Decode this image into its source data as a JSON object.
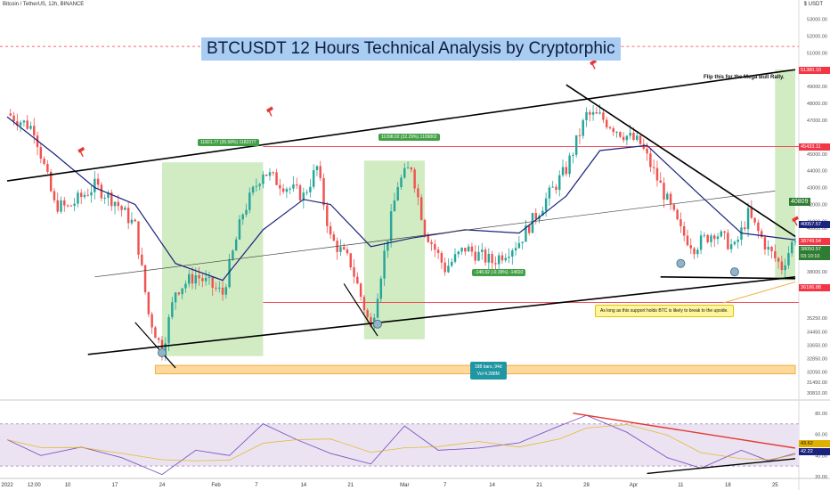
{
  "header": {
    "symbol_info": "Bitcoin / TetherUS, 12h, BINANCE",
    "unit": "$ USDT",
    "title": "BTCUSDT 12 Hours Technical Analysis by Cryptorphic"
  },
  "annotations": {
    "flip_note": "Flip this for the Mega Bull Rally.",
    "support_note": "As long as this support holds BTC is likely to break to the upside.",
    "range1": "11821.77 (35.58%) 1182377",
    "range2": "11098.02 (32.29%) 1109802",
    "range3": "-146.92 (-0.39%) -14692",
    "bars_info_line1": "188 bars, 94d",
    "bars_info_line2": "Vol 4.288M"
  },
  "price_axis": {
    "ticks": [
      "53000.00",
      "52000.00",
      "51000.00",
      "49000.00",
      "48000.00",
      "47000.00",
      "45000.00",
      "44000.00",
      "43000.00",
      "42000.00",
      "41000.00",
      "40600.00",
      "39400.00",
      "38000.00",
      "37000.00",
      "35250.00",
      "34450.00",
      "33650.00",
      "32850.00",
      "32050.00",
      "31450.00",
      "30810.00"
    ],
    "labels": [
      {
        "text": "51380.10",
        "color": "#f23645"
      },
      {
        "text": "45433.11",
        "color": "#f23645"
      },
      {
        "text": "40809",
        "color": "#2e7d32"
      },
      {
        "text": "40057.57",
        "color": "#1a237e"
      },
      {
        "text": "38749.54",
        "color": "#f23645"
      },
      {
        "text": "38050.57",
        "color": "#2e7d32"
      },
      {
        "text": "03:10:10",
        "color": "#2e7d32"
      },
      {
        "text": "36186.88",
        "color": "#f23645"
      }
    ]
  },
  "rsi_axis": {
    "ticks": [
      "80.00",
      "60.00",
      "40.00",
      "20.00"
    ],
    "labels": [
      {
        "text": "43.62",
        "color": "#e0b000"
      },
      {
        "text": "42.22",
        "color": "#1a237e"
      }
    ]
  },
  "time_axis": [
    "2022",
    "12:00",
    "10",
    "17",
    "24",
    "Feb",
    "7",
    "14",
    "21",
    "Mar",
    "7",
    "14",
    "21",
    "28",
    "Apr",
    "11",
    "18",
    "25"
  ],
  "colors": {
    "up": "#26a69a",
    "down": "#ef5350",
    "ma": "#1a237e",
    "box_green": "#c9e7b8",
    "rsi": "#7e57c2",
    "rsi_signal": "#e0b000"
  },
  "chart_data": {
    "type": "candlestick",
    "timeframe": "12h",
    "x_range": [
      "2022-01-01",
      "2022-04-28"
    ],
    "ylim": [
      30500,
      53500
    ],
    "close_path": [
      {
        "date": "2022-01-01",
        "close": 47400
      },
      {
        "date": "2022-01-05",
        "close": 46500
      },
      {
        "date": "2022-01-08",
        "close": 42000
      },
      {
        "date": "2022-01-10",
        "close": 41800
      },
      {
        "date": "2022-01-14",
        "close": 43100
      },
      {
        "date": "2022-01-17",
        "close": 42200
      },
      {
        "date": "2022-01-20",
        "close": 40700
      },
      {
        "date": "2022-01-22",
        "close": 35500
      },
      {
        "date": "2022-01-24",
        "close": 33300
      },
      {
        "date": "2022-01-26",
        "close": 36900
      },
      {
        "date": "2022-01-29",
        "close": 37800
      },
      {
        "date": "2022-02-02",
        "close": 36700
      },
      {
        "date": "2022-02-05",
        "close": 41500
      },
      {
        "date": "2022-02-08",
        "close": 44000
      },
      {
        "date": "2022-02-10",
        "close": 43400
      },
      {
        "date": "2022-02-14",
        "close": 42500
      },
      {
        "date": "2022-02-16",
        "close": 44200
      },
      {
        "date": "2022-02-18",
        "close": 40000
      },
      {
        "date": "2022-02-21",
        "close": 38500
      },
      {
        "date": "2022-02-24",
        "close": 34600
      },
      {
        "date": "2022-02-26",
        "close": 39100
      },
      {
        "date": "2022-02-28",
        "close": 43200
      },
      {
        "date": "2022-03-02",
        "close": 44300
      },
      {
        "date": "2022-03-04",
        "close": 40500
      },
      {
        "date": "2022-03-07",
        "close": 38200
      },
      {
        "date": "2022-03-10",
        "close": 39400
      },
      {
        "date": "2022-03-14",
        "close": 38600
      },
      {
        "date": "2022-03-18",
        "close": 39800
      },
      {
        "date": "2022-03-22",
        "close": 42300
      },
      {
        "date": "2022-03-25",
        "close": 44100
      },
      {
        "date": "2022-03-28",
        "close": 47300
      },
      {
        "date": "2022-03-30",
        "close": 47200
      },
      {
        "date": "2022-04-02",
        "close": 46300
      },
      {
        "date": "2022-04-05",
        "close": 45600
      },
      {
        "date": "2022-04-08",
        "close": 43100
      },
      {
        "date": "2022-04-11",
        "close": 40400
      },
      {
        "date": "2022-04-13",
        "close": 39500
      },
      {
        "date": "2022-04-16",
        "close": 40400
      },
      {
        "date": "2022-04-19",
        "close": 39400
      },
      {
        "date": "2022-04-21",
        "close": 41400
      },
      {
        "date": "2022-04-24",
        "close": 39300
      },
      {
        "date": "2022-04-26",
        "close": 38300
      },
      {
        "date": "2022-04-28",
        "close": 40100
      }
    ],
    "moving_average_path": [
      {
        "date": "2022-01-01",
        "value": 47200
      },
      {
        "date": "2022-01-08",
        "value": 45000
      },
      {
        "date": "2022-01-14",
        "value": 43000
      },
      {
        "date": "2022-01-20",
        "value": 42000
      },
      {
        "date": "2022-01-26",
        "value": 38500
      },
      {
        "date": "2022-02-02",
        "value": 37500
      },
      {
        "date": "2022-02-08",
        "value": 40500
      },
      {
        "date": "2022-02-14",
        "value": 42300
      },
      {
        "date": "2022-02-18",
        "value": 42000
      },
      {
        "date": "2022-02-24",
        "value": 39500
      },
      {
        "date": "2022-03-02",
        "value": 40000
      },
      {
        "date": "2022-03-10",
        "value": 40500
      },
      {
        "date": "2022-03-18",
        "value": 40300
      },
      {
        "date": "2022-03-25",
        "value": 42500
      },
      {
        "date": "2022-03-30",
        "value": 45200
      },
      {
        "date": "2022-04-06",
        "value": 45500
      },
      {
        "date": "2022-04-14",
        "value": 42500
      },
      {
        "date": "2022-04-20",
        "value": 40300
      },
      {
        "date": "2022-04-28",
        "value": 39900
      }
    ],
    "rsi": {
      "ylim": [
        20,
        90
      ],
      "path": [
        {
          "date": "2022-01-01",
          "value": 55
        },
        {
          "date": "2022-01-06",
          "value": 40
        },
        {
          "date": "2022-01-12",
          "value": 48
        },
        {
          "date": "2022-01-18",
          "value": 38
        },
        {
          "date": "2022-01-24",
          "value": 22
        },
        {
          "date": "2022-01-29",
          "value": 45
        },
        {
          "date": "2022-02-03",
          "value": 40
        },
        {
          "date": "2022-02-08",
          "value": 70
        },
        {
          "date": "2022-02-13",
          "value": 55
        },
        {
          "date": "2022-02-18",
          "value": 42
        },
        {
          "date": "2022-02-24",
          "value": 32
        },
        {
          "date": "2022-03-01",
          "value": 68
        },
        {
          "date": "2022-03-06",
          "value": 45
        },
        {
          "date": "2022-03-12",
          "value": 47
        },
        {
          "date": "2022-03-18",
          "value": 52
        },
        {
          "date": "2022-03-24",
          "value": 68
        },
        {
          "date": "2022-03-28",
          "value": 78
        },
        {
          "date": "2022-04-03",
          "value": 62
        },
        {
          "date": "2022-04-09",
          "value": 38
        },
        {
          "date": "2022-04-14",
          "value": 28
        },
        {
          "date": "2022-04-20",
          "value": 45
        },
        {
          "date": "2022-04-24",
          "value": 35
        },
        {
          "date": "2022-04-28",
          "value": 42
        }
      ]
    },
    "shapes": {
      "ascending_channel_top": [
        {
          "date": "2022-01-01",
          "price": 43400
        },
        {
          "date": "2022-04-28",
          "price": 50000
        }
      ],
      "ascending_channel_bottom": [
        {
          "date": "2022-01-13",
          "price": 33100
        },
        {
          "date": "2022-04-28",
          "price": 37700
        }
      ],
      "midline": [
        {
          "date": "2022-01-14",
          "price": 37700
        },
        {
          "date": "2022-04-25",
          "price": 42800
        }
      ],
      "falling_wedge_top": [
        {
          "date": "2022-03-25",
          "price": 49100
        },
        {
          "date": "2022-04-28",
          "price": 40100
        }
      ],
      "falling_wedge_bottom": [
        {
          "date": "2022-04-08",
          "price": 37700
        },
        {
          "date": "2022-04-28",
          "price": 37600
        }
      ],
      "resistance_45433": 45433.11,
      "resistance_51380": 51380.1,
      "support_36186": 36186.88
    }
  }
}
